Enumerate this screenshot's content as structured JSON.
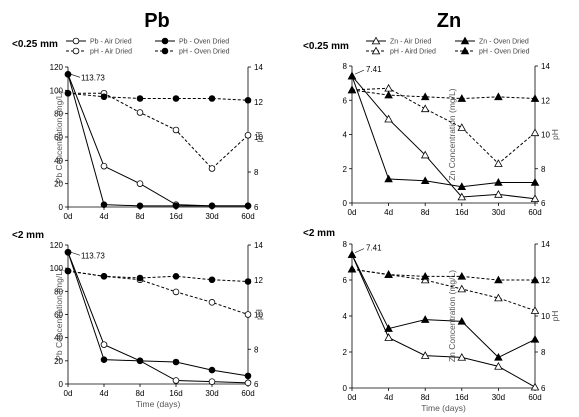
{
  "chart_data": [
    {
      "id": "pb-top",
      "type": "line",
      "title": "Pb",
      "size_label": "<0.25 mm",
      "categories": [
        "0d",
        "4d",
        "8d",
        "16d",
        "30d",
        "60d"
      ],
      "xlabel": "",
      "ylabel": "Pb Concentration (mg/L)",
      "y2label": "pH",
      "ylim": [
        0,
        120
      ],
      "yticks": [
        "0",
        "20",
        "40",
        "60",
        "80",
        "100",
        "120"
      ],
      "y2lim": [
        6,
        14
      ],
      "y2ticks": [
        "6",
        "8",
        "10",
        "12",
        "14"
      ],
      "annotation": {
        "text": "113.73",
        "value": 113.73
      },
      "series": [
        {
          "name": "Pb - Air Dried",
          "axis": "left",
          "marker": "open",
          "dash": false,
          "values": [
            113.73,
            35,
            20,
            2,
            1,
            1
          ]
        },
        {
          "name": "Pb - Oven Dried",
          "axis": "left",
          "marker": "filled",
          "dash": false,
          "values": [
            113.73,
            2,
            1,
            1,
            1,
            1
          ]
        },
        {
          "name": "pH - Air Dried",
          "axis": "right",
          "marker": "open",
          "dash": true,
          "values": [
            12.5,
            12.5,
            11.4,
            10.4,
            8.2,
            10.1
          ]
        },
        {
          "name": "pH - Oven Dried",
          "axis": "right",
          "marker": "filled",
          "dash": true,
          "values": [
            12.5,
            12.3,
            12.2,
            12.2,
            12.2,
            12.1
          ]
        }
      ]
    },
    {
      "id": "zn-top",
      "type": "line",
      "title": "Zn",
      "size_label": "<0.25 mm",
      "categories": [
        "0d",
        "4d",
        "8d",
        "16d",
        "30d",
        "60d"
      ],
      "xlabel": "",
      "ylabel": "Zn Concentration (mg/L)",
      "y2label": "pH",
      "ylim": [
        0,
        8
      ],
      "yticks": [
        "0",
        "2",
        "4",
        "6",
        "8"
      ],
      "y2lim": [
        6,
        14
      ],
      "y2ticks": [
        "6",
        "8",
        "10",
        "12",
        "14"
      ],
      "annotation": {
        "text": "7.41",
        "value": 7.41
      },
      "series": [
        {
          "name": "Zn - Air Dried",
          "axis": "left",
          "marker": "open",
          "dash": false,
          "values": [
            7.41,
            4.9,
            2.8,
            0.35,
            0.5,
            0.25
          ]
        },
        {
          "name": "Zn - Oven Dried",
          "axis": "left",
          "marker": "filled",
          "dash": false,
          "values": [
            7.41,
            1.4,
            1.3,
            0.95,
            1.2,
            1.2
          ]
        },
        {
          "name": "pH - Aird Dried",
          "axis": "right",
          "marker": "open",
          "dash": true,
          "values": [
            12.6,
            12.7,
            11.5,
            10.4,
            8.3,
            10.1
          ]
        },
        {
          "name": "pH - Oven Dried",
          "axis": "right",
          "marker": "filled",
          "dash": true,
          "values": [
            12.6,
            12.3,
            12.2,
            12.1,
            12.2,
            12.1
          ]
        }
      ]
    },
    {
      "id": "pb-bottom",
      "type": "line",
      "title": "",
      "size_label": "<2 mm",
      "categories": [
        "0d",
        "4d",
        "8d",
        "16d",
        "30d",
        "60d"
      ],
      "xlabel": "Time (days)",
      "ylabel": "Pb Concentration (mg/L)",
      "y2label": "pH",
      "ylim": [
        0,
        120
      ],
      "yticks": [
        "0",
        "20",
        "40",
        "60",
        "80",
        "100",
        "120"
      ],
      "y2lim": [
        6,
        14
      ],
      "y2ticks": [
        "6",
        "8",
        "10",
        "12",
        "14"
      ],
      "annotation": {
        "text": "113.73",
        "value": 113.73
      },
      "series": [
        {
          "name": "Pb - Air Dried",
          "axis": "left",
          "marker": "open",
          "dash": false,
          "values": [
            113.73,
            34,
            20,
            3,
            2,
            1
          ]
        },
        {
          "name": "Pb - Oven Dried",
          "axis": "left",
          "marker": "filled",
          "dash": false,
          "values": [
            113.73,
            21,
            20,
            19,
            12,
            7
          ]
        },
        {
          "name": "pH - Air Dried",
          "axis": "right",
          "marker": "open",
          "dash": true,
          "values": [
            12.5,
            12.2,
            12.0,
            11.3,
            10.7,
            10.0
          ]
        },
        {
          "name": "pH - Oven Dried",
          "axis": "right",
          "marker": "filled",
          "dash": true,
          "values": [
            12.5,
            12.2,
            12.1,
            12.2,
            12.0,
            11.9
          ]
        }
      ]
    },
    {
      "id": "zn-bottom",
      "type": "line",
      "title": "",
      "size_label": "<2 mm",
      "categories": [
        "0d",
        "4d",
        "8d",
        "16d",
        "30d",
        "60d"
      ],
      "xlabel": "Time (days)",
      "ylabel": "Zn Concentration (mg/L)",
      "y2label": "pH",
      "ylim": [
        0,
        8
      ],
      "yticks": [
        "0",
        "2",
        "4",
        "6",
        "8"
      ],
      "y2lim": [
        6,
        14
      ],
      "y2ticks": [
        "6",
        "8",
        "10",
        "12",
        "14"
      ],
      "annotation": {
        "text": "7.41",
        "value": 7.41
      },
      "series": [
        {
          "name": "Zn - Air Dried",
          "axis": "left",
          "marker": "open",
          "dash": false,
          "values": [
            7.41,
            2.8,
            1.8,
            1.7,
            1.2,
            0.05
          ]
        },
        {
          "name": "Zn - Oven Dried",
          "axis": "left",
          "marker": "filled",
          "dash": false,
          "values": [
            7.41,
            3.3,
            3.8,
            3.7,
            1.7,
            2.7
          ]
        },
        {
          "name": "pH - Air Dried",
          "axis": "right",
          "marker": "open",
          "dash": true,
          "values": [
            12.6,
            12.3,
            12.0,
            11.5,
            11.0,
            10.3
          ]
        },
        {
          "name": "pH - Oven Dried",
          "axis": "right",
          "marker": "filled",
          "dash": true,
          "values": [
            12.6,
            12.3,
            12.2,
            12.2,
            12.0,
            12.0
          ]
        }
      ]
    }
  ]
}
